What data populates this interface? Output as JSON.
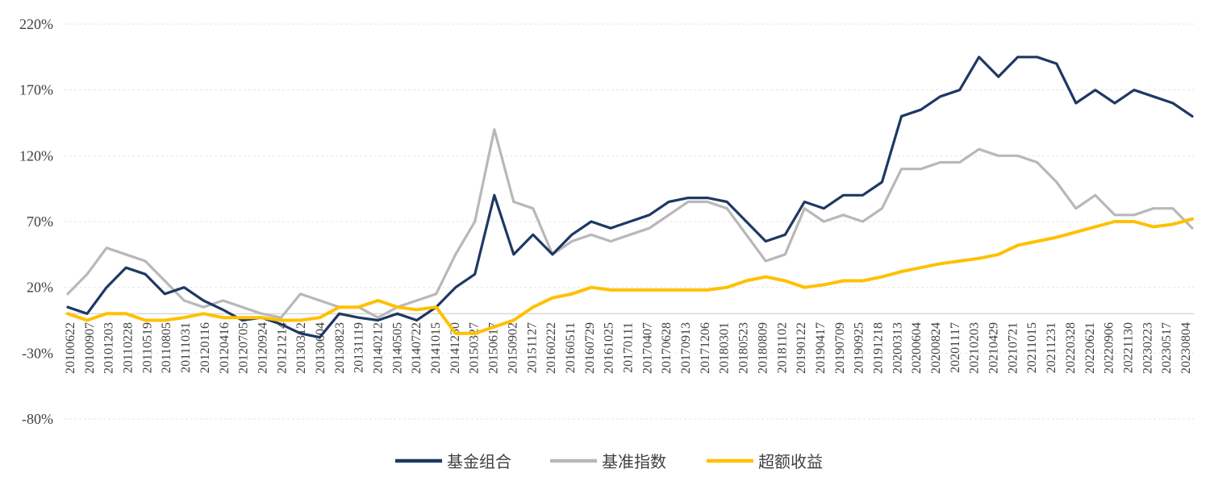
{
  "chart_data": {
    "type": "line",
    "title": "",
    "xlabel": "",
    "ylabel": "",
    "ylim": [
      -80,
      220
    ],
    "yticks": [
      "220%",
      "170%",
      "120%",
      "70%",
      "20%",
      "-30%",
      "-80%"
    ],
    "ytick_values": [
      220,
      170,
      120,
      70,
      20,
      -30,
      -80
    ],
    "grid": "horizontal dashed",
    "legend_position": "bottom-center",
    "x_tick_labels": [
      "20100622",
      "20100907",
      "20101203",
      "20110228",
      "20110519",
      "20110805",
      "20111031",
      "20120116",
      "20120416",
      "20120705",
      "20120924",
      "20121214",
      "20130312",
      "20130604",
      "20130823",
      "20131119",
      "20140212",
      "20140505",
      "20140722",
      "20141015",
      "20141230",
      "20150327",
      "20150617",
      "20150902",
      "20151127",
      "20160222",
      "20160511",
      "20160729",
      "20161025",
      "20170111",
      "20170407",
      "20170628",
      "20170913",
      "20171206",
      "20180301",
      "20180523",
      "20180809",
      "20181102",
      "20190122",
      "20190417",
      "20190709",
      "20190925",
      "20191218",
      "20200313",
      "20200604",
      "20200824",
      "20201117",
      "20210203",
      "20210429",
      "20210721",
      "20211015",
      "20211231",
      "20220328",
      "20220621",
      "20220906",
      "20221130",
      "20230223",
      "20230517",
      "20230804"
    ],
    "series": [
      {
        "name": "基金组合",
        "color": "#1f3864",
        "values": [
          5,
          0,
          20,
          35,
          30,
          15,
          20,
          10,
          3,
          -5,
          -3,
          -8,
          -15,
          -18,
          0,
          -3,
          -5,
          0,
          -5,
          5,
          20,
          30,
          90,
          45,
          60,
          45,
          60,
          70,
          65,
          70,
          75,
          85,
          88,
          88,
          85,
          70,
          55,
          60,
          85,
          80,
          90,
          90,
          100,
          150,
          155,
          165,
          170,
          195,
          180,
          195,
          195,
          190,
          160,
          170,
          160,
          170,
          165,
          160,
          150
        ]
      },
      {
        "name": "基准指数",
        "color": "#b8b8b8",
        "values": [
          15,
          30,
          50,
          45,
          40,
          25,
          10,
          5,
          10,
          5,
          0,
          -3,
          15,
          10,
          5,
          5,
          -3,
          5,
          10,
          15,
          45,
          70,
          140,
          85,
          80,
          45,
          55,
          60,
          55,
          60,
          65,
          75,
          85,
          85,
          80,
          60,
          40,
          45,
          80,
          70,
          75,
          70,
          80,
          110,
          110,
          115,
          115,
          125,
          120,
          120,
          115,
          100,
          80,
          90,
          75,
          75,
          80,
          80,
          65
        ]
      },
      {
        "name": "超额收益",
        "color": "#ffc000",
        "values": [
          0,
          -5,
          0,
          0,
          -5,
          -5,
          -3,
          0,
          -3,
          -3,
          -3,
          -5,
          -5,
          -3,
          5,
          5,
          10,
          5,
          3,
          5,
          -15,
          -15,
          -10,
          -5,
          5,
          12,
          15,
          20,
          18,
          18,
          18,
          18,
          18,
          18,
          20,
          25,
          28,
          25,
          20,
          22,
          25,
          25,
          28,
          32,
          35,
          38,
          40,
          42,
          45,
          52,
          55,
          58,
          62,
          66,
          70,
          70,
          66,
          68,
          72
        ]
      }
    ]
  }
}
